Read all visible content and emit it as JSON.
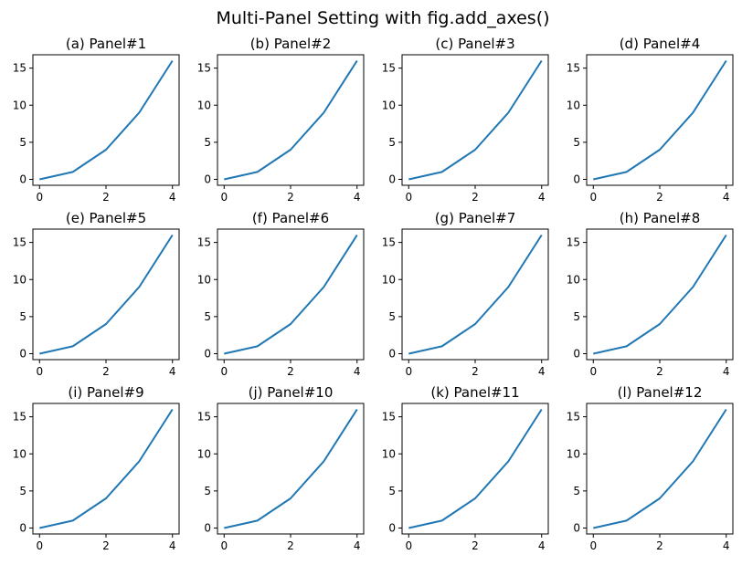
{
  "figure_title": "Multi-Panel Setting with fig.add_axes()",
  "line_color": "#1f77b4",
  "chart_data": [
    {
      "type": "line",
      "title": "(a) Panel#1",
      "x": [
        0,
        1,
        2,
        3,
        4
      ],
      "y": [
        0,
        1,
        4,
        9,
        16
      ],
      "xlim": [
        -0.2,
        4.2
      ],
      "ylim": [
        -0.8,
        16.8
      ],
      "xticks": [
        0,
        2,
        4
      ],
      "yticks": [
        0,
        5,
        10,
        15
      ],
      "grid": false
    },
    {
      "type": "line",
      "title": "(b) Panel#2",
      "x": [
        0,
        1,
        2,
        3,
        4
      ],
      "y": [
        0,
        1,
        4,
        9,
        16
      ],
      "xlim": [
        -0.2,
        4.2
      ],
      "ylim": [
        -0.8,
        16.8
      ],
      "xticks": [
        0,
        2,
        4
      ],
      "yticks": [
        0,
        5,
        10,
        15
      ],
      "grid": false
    },
    {
      "type": "line",
      "title": "(c) Panel#3",
      "x": [
        0,
        1,
        2,
        3,
        4
      ],
      "y": [
        0,
        1,
        4,
        9,
        16
      ],
      "xlim": [
        -0.2,
        4.2
      ],
      "ylim": [
        -0.8,
        16.8
      ],
      "xticks": [
        0,
        2,
        4
      ],
      "yticks": [
        0,
        5,
        10,
        15
      ],
      "grid": false
    },
    {
      "type": "line",
      "title": "(d) Panel#4",
      "x": [
        0,
        1,
        2,
        3,
        4
      ],
      "y": [
        0,
        1,
        4,
        9,
        16
      ],
      "xlim": [
        -0.2,
        4.2
      ],
      "ylim": [
        -0.8,
        16.8
      ],
      "xticks": [
        0,
        2,
        4
      ],
      "yticks": [
        0,
        5,
        10,
        15
      ],
      "grid": false
    },
    {
      "type": "line",
      "title": "(e) Panel#5",
      "x": [
        0,
        1,
        2,
        3,
        4
      ],
      "y": [
        0,
        1,
        4,
        9,
        16
      ],
      "xlim": [
        -0.2,
        4.2
      ],
      "ylim": [
        -0.8,
        16.8
      ],
      "xticks": [
        0,
        2,
        4
      ],
      "yticks": [
        0,
        5,
        10,
        15
      ],
      "grid": false
    },
    {
      "type": "line",
      "title": "(f) Panel#6",
      "x": [
        0,
        1,
        2,
        3,
        4
      ],
      "y": [
        0,
        1,
        4,
        9,
        16
      ],
      "xlim": [
        -0.2,
        4.2
      ],
      "ylim": [
        -0.8,
        16.8
      ],
      "xticks": [
        0,
        2,
        4
      ],
      "yticks": [
        0,
        5,
        10,
        15
      ],
      "grid": false
    },
    {
      "type": "line",
      "title": "(g) Panel#7",
      "x": [
        0,
        1,
        2,
        3,
        4
      ],
      "y": [
        0,
        1,
        4,
        9,
        16
      ],
      "xlim": [
        -0.2,
        4.2
      ],
      "ylim": [
        -0.8,
        16.8
      ],
      "xticks": [
        0,
        2,
        4
      ],
      "yticks": [
        0,
        5,
        10,
        15
      ],
      "grid": false
    },
    {
      "type": "line",
      "title": "(h) Panel#8",
      "x": [
        0,
        1,
        2,
        3,
        4
      ],
      "y": [
        0,
        1,
        4,
        9,
        16
      ],
      "xlim": [
        -0.2,
        4.2
      ],
      "ylim": [
        -0.8,
        16.8
      ],
      "xticks": [
        0,
        2,
        4
      ],
      "yticks": [
        0,
        5,
        10,
        15
      ],
      "grid": false
    },
    {
      "type": "line",
      "title": "(i) Panel#9",
      "x": [
        0,
        1,
        2,
        3,
        4
      ],
      "y": [
        0,
        1,
        4,
        9,
        16
      ],
      "xlim": [
        -0.2,
        4.2
      ],
      "ylim": [
        -0.8,
        16.8
      ],
      "xticks": [
        0,
        2,
        4
      ],
      "yticks": [
        0,
        5,
        10,
        15
      ],
      "grid": false
    },
    {
      "type": "line",
      "title": "(j) Panel#10",
      "x": [
        0,
        1,
        2,
        3,
        4
      ],
      "y": [
        0,
        1,
        4,
        9,
        16
      ],
      "xlim": [
        -0.2,
        4.2
      ],
      "ylim": [
        -0.8,
        16.8
      ],
      "xticks": [
        0,
        2,
        4
      ],
      "yticks": [
        0,
        5,
        10,
        15
      ],
      "grid": false
    },
    {
      "type": "line",
      "title": "(k) Panel#11",
      "x": [
        0,
        1,
        2,
        3,
        4
      ],
      "y": [
        0,
        1,
        4,
        9,
        16
      ],
      "xlim": [
        -0.2,
        4.2
      ],
      "ylim": [
        -0.8,
        16.8
      ],
      "xticks": [
        0,
        2,
        4
      ],
      "yticks": [
        0,
        5,
        10,
        15
      ],
      "grid": false
    },
    {
      "type": "line",
      "title": "(l) Panel#12",
      "x": [
        0,
        1,
        2,
        3,
        4
      ],
      "y": [
        0,
        1,
        4,
        9,
        16
      ],
      "xlim": [
        -0.2,
        4.2
      ],
      "ylim": [
        -0.8,
        16.8
      ],
      "xticks": [
        0,
        2,
        4
      ],
      "yticks": [
        0,
        5,
        10,
        15
      ],
      "grid": false
    }
  ]
}
